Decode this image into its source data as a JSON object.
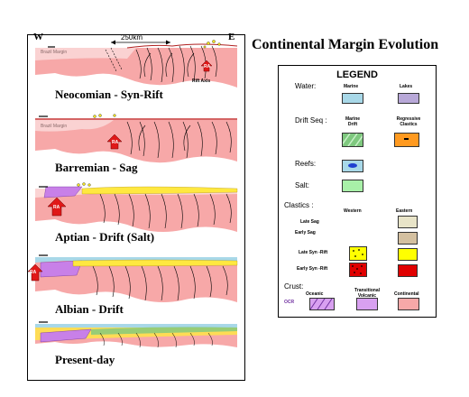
{
  "diagram": {
    "direction_west": "W",
    "direction_east": "E",
    "scale_label": "250km",
    "stages": [
      {
        "label": "Neocomian - Syn-Rift",
        "note": "Brazil Margin",
        "tag": "Rift Axis"
      },
      {
        "label": "Barremian - Sag",
        "note": "Brazil Margin"
      },
      {
        "label": "Aptian - Drift (Salt)"
      },
      {
        "label": "Albian - Drift"
      },
      {
        "label": "Present-day"
      }
    ],
    "ra_tag": "RA"
  },
  "title": "Continental Margin Evolution",
  "legend": {
    "title": "LEGEND",
    "water": {
      "label": "Water:",
      "marine": "Marine",
      "lakes": "Lakes"
    },
    "drift": {
      "label": "Drift Seq :",
      "marine_drift": "Marine Drift",
      "regressive": "Regressive Clastics"
    },
    "reefs": "Reefs:",
    "salt": "Salt:",
    "clastics": {
      "label": "Clastics :",
      "western": "Western",
      "eastern": "Eastern",
      "rows": [
        "Late Sag",
        "Early Sag",
        "Late Syn -Rift",
        "Early Syn -Rift"
      ]
    },
    "crust": {
      "label": "Crust:",
      "oceanic": "Oceanic",
      "transitional": "Transitional Volcanic",
      "continental": "Continental",
      "ocr": "OCR"
    }
  },
  "colors": {
    "crust": "#f7a8a8",
    "crust_light": "#fad2d2",
    "water": "#a8d8e8",
    "lakes": "#b8a8d8",
    "salt": "#a8f0a8",
    "drift_green": "#7ec87e",
    "orange": "#ff9a20",
    "reef_blue": "#2040d0",
    "transitional": "#d8a0f0",
    "late_sag": "#e8e4c8",
    "early_sag": "#d4c0a0",
    "late_synrift": "#ffff00",
    "early_synrift": "#e00000",
    "ra_red": "#e01818"
  }
}
